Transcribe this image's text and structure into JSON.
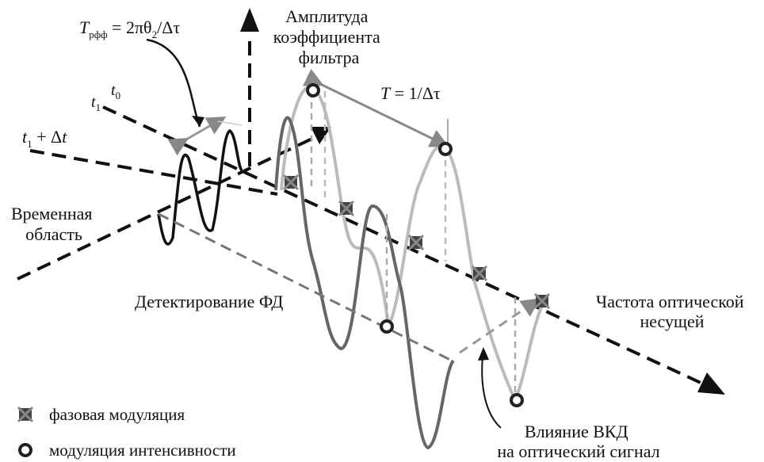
{
  "labels": {
    "amplitude": [
      "Амплитуда",
      "коэффициента",
      "фильтра"
    ],
    "trff": {
      "T": "T",
      "sub": "рфф",
      "eq": " = 2πθ",
      "sub2": "2",
      "rest": "/Δτ"
    },
    "t0": {
      "t": "t",
      "sub": "0"
    },
    "t1": {
      "t": "t",
      "sub": "1"
    },
    "t1dt": {
      "t": "t",
      "sub": "1",
      "rest": " + Δ",
      "t2": "t"
    },
    "period": {
      "T": "T",
      "rest": " = 1/Δτ"
    },
    "time_domain": [
      "Временная",
      "область"
    ],
    "pd_detection": "Детектирование ФД",
    "optical_carrier": [
      "Частота оптической",
      "несущей"
    ],
    "cd_effect": [
      "Влияние ВКД",
      "на оптический сигнал"
    ]
  },
  "legend": [
    {
      "marker": "cross-square",
      "text": "фазовая модуляция"
    },
    {
      "marker": "ring",
      "text": "модуляция интенсивности"
    }
  ],
  "colors": {
    "black": "#111111",
    "dark_gray": "#555555",
    "mid_gray": "#888888",
    "light_gray": "#bbbbbb"
  }
}
